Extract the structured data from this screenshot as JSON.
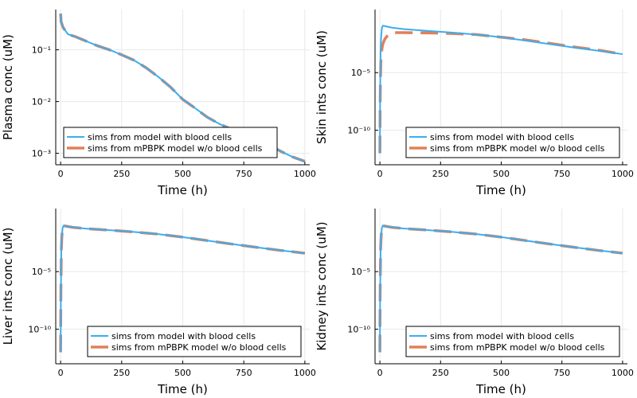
{
  "colors": {
    "series1": "#3aaef0",
    "series2": "#e0805a",
    "grid": "#e8e8e8",
    "axis": "#000000"
  },
  "chart_data": [
    {
      "type": "line",
      "xlabel": "Time (h)",
      "ylabel": "Plasma conc (uM)",
      "yscale": "log",
      "xlim": [
        -20,
        1020
      ],
      "ylim": [
        0.0006,
        0.6
      ],
      "xticks": [
        0,
        250,
        500,
        750,
        1000
      ],
      "xtick_labels": [
        "0",
        "250",
        "500",
        "750",
        "1000"
      ],
      "yticks": [
        0.001,
        0.01,
        0.1
      ],
      "ytick_labels": [
        "10⁻³",
        "10⁻²",
        "10⁻¹"
      ],
      "grid": true,
      "legend": {
        "position": "bottom-left",
        "entries": [
          "sims from model with blood cells",
          "sims from mPBPK model w/o blood cells"
        ]
      },
      "series": [
        {
          "name": "sims from model with blood cells",
          "style": "solid",
          "x": [
            0,
            2,
            10,
            30,
            60,
            100,
            150,
            200,
            250,
            300,
            350,
            400,
            450,
            500,
            550,
            600,
            650,
            700,
            750,
            800,
            850,
            900,
            950,
            1000
          ],
          "y": [
            0.5,
            0.35,
            0.27,
            0.2,
            0.18,
            0.15,
            0.12,
            0.1,
            0.08,
            0.063,
            0.045,
            0.03,
            0.019,
            0.011,
            0.0075,
            0.005,
            0.0037,
            0.0029,
            0.0024,
            0.0019,
            0.0015,
            0.0011,
            0.00085,
            0.0007
          ]
        },
        {
          "name": "sims from mPBPK model w/o blood cells",
          "style": "dashed",
          "x": [
            0,
            2,
            10,
            30,
            60,
            100,
            150,
            200,
            250,
            300,
            350,
            400,
            450,
            500,
            550,
            600,
            650,
            700,
            750,
            800,
            850,
            900,
            950,
            1000
          ],
          "y": [
            0.5,
            0.35,
            0.27,
            0.2,
            0.18,
            0.15,
            0.12,
            0.1,
            0.08,
            0.063,
            0.045,
            0.03,
            0.019,
            0.011,
            0.0075,
            0.005,
            0.0037,
            0.0029,
            0.0024,
            0.0019,
            0.0015,
            0.0011,
            0.00085,
            0.0007
          ]
        }
      ]
    },
    {
      "type": "line",
      "xlabel": "Time (h)",
      "ylabel": "Skin ints conc (uM)",
      "yscale": "log",
      "xlim": [
        -20,
        1020
      ],
      "ylim": [
        1e-13,
        3
      ],
      "xticks": [
        0,
        250,
        500,
        750,
        1000
      ],
      "xtick_labels": [
        "0",
        "250",
        "500",
        "750",
        "1000"
      ],
      "yticks": [
        1e-10,
        1e-05
      ],
      "ytick_labels": [
        "10⁻¹⁰",
        "10⁻⁵"
      ],
      "grid": true,
      "legend": {
        "position": "bottom-right",
        "entries": [
          "sims from model with blood cells",
          "sims from mPBPK model w/o blood cells"
        ]
      },
      "series": [
        {
          "name": "sims from model with blood cells",
          "style": "solid",
          "x": [
            0,
            0.5,
            1,
            2,
            3,
            5,
            8,
            12,
            20,
            50,
            100,
            200,
            300,
            400,
            500,
            600,
            700,
            800,
            900,
            1000
          ],
          "y": [
            1e-12,
            1e-09,
            1e-07,
            1e-05,
            0.001,
            0.01,
            0.07,
            0.12,
            0.11,
            0.08,
            0.06,
            0.042,
            0.03,
            0.02,
            0.012,
            0.006,
            0.003,
            0.0015,
            0.0008,
            0.0004
          ]
        },
        {
          "name": "sims from mPBPK model w/o blood cells",
          "style": "dashed",
          "x": [
            0,
            0.5,
            1,
            2,
            4,
            8,
            12,
            20,
            30,
            45,
            60,
            100,
            200,
            300,
            400,
            500,
            600,
            700,
            800,
            900,
            1000
          ],
          "y": [
            1e-12,
            1e-10,
            1e-08,
            1e-06,
            0.0001,
            0.001,
            0.003,
            0.008,
            0.015,
            0.025,
            0.03,
            0.03,
            0.028,
            0.025,
            0.02,
            0.012,
            0.007,
            0.0035,
            0.0017,
            0.0009,
            0.0004
          ]
        }
      ]
    },
    {
      "type": "line",
      "xlabel": "Time (h)",
      "ylabel": "Liver ints conc (uM)",
      "yscale": "log",
      "xlim": [
        -20,
        1020
      ],
      "ylim": [
        1e-13,
        3
      ],
      "xticks": [
        0,
        250,
        500,
        750,
        1000
      ],
      "xtick_labels": [
        "0",
        "250",
        "500",
        "750",
        "1000"
      ],
      "yticks": [
        1e-10,
        1e-05
      ],
      "ytick_labels": [
        "10⁻¹⁰",
        "10⁻⁵"
      ],
      "grid": true,
      "legend": {
        "position": "bottom-right",
        "entries": [
          "sims from model with blood cells",
          "sims from mPBPK model w/o blood cells"
        ]
      },
      "series": [
        {
          "name": "sims from model with blood cells",
          "style": "solid",
          "x": [
            0,
            0.5,
            1,
            2,
            3,
            5,
            8,
            12,
            20,
            50,
            100,
            200,
            300,
            400,
            500,
            600,
            700,
            800,
            900,
            1000
          ],
          "y": [
            1e-12,
            1e-09,
            1e-07,
            1e-05,
            0.001,
            0.01,
            0.06,
            0.1,
            0.09,
            0.07,
            0.055,
            0.04,
            0.028,
            0.018,
            0.01,
            0.005,
            0.0025,
            0.0013,
            0.0007,
            0.0004
          ]
        },
        {
          "name": "sims from mPBPK model w/o blood cells",
          "style": "dashed",
          "x": [
            0,
            0.5,
            1,
            2,
            3,
            5,
            8,
            12,
            20,
            50,
            100,
            200,
            300,
            400,
            500,
            600,
            700,
            800,
            900,
            1000
          ],
          "y": [
            1e-12,
            1e-09,
            1e-07,
            1e-05,
            0.001,
            0.01,
            0.06,
            0.1,
            0.09,
            0.07,
            0.055,
            0.04,
            0.028,
            0.018,
            0.01,
            0.005,
            0.0025,
            0.0013,
            0.0007,
            0.0004
          ]
        }
      ]
    },
    {
      "type": "line",
      "xlabel": "Time (h)",
      "ylabel": "Kidney ints conc (uM)",
      "yscale": "log",
      "xlim": [
        -20,
        1020
      ],
      "ylim": [
        1e-13,
        3
      ],
      "xticks": [
        0,
        250,
        500,
        750,
        1000
      ],
      "xtick_labels": [
        "0",
        "250",
        "500",
        "750",
        "1000"
      ],
      "yticks": [
        1e-10,
        1e-05
      ],
      "ytick_labels": [
        "10⁻¹⁰",
        "10⁻⁵"
      ],
      "grid": true,
      "legend": {
        "position": "bottom-right",
        "entries": [
          "sims from model with blood cells",
          "sims from mPBPK model w/o blood cells"
        ]
      },
      "series": [
        {
          "name": "sims from model with blood cells",
          "style": "solid",
          "x": [
            0,
            0.5,
            1,
            2,
            3,
            5,
            8,
            12,
            20,
            50,
            100,
            200,
            300,
            400,
            500,
            600,
            700,
            800,
            900,
            1000
          ],
          "y": [
            1e-12,
            1e-09,
            1e-07,
            1e-05,
            0.001,
            0.01,
            0.06,
            0.1,
            0.09,
            0.07,
            0.055,
            0.04,
            0.028,
            0.018,
            0.01,
            0.005,
            0.0025,
            0.0013,
            0.0007,
            0.0004
          ]
        },
        {
          "name": "sims from mPBPK model w/o blood cells",
          "style": "dashed",
          "x": [
            0,
            0.5,
            1,
            2,
            3,
            5,
            8,
            12,
            20,
            50,
            100,
            200,
            300,
            400,
            500,
            600,
            700,
            800,
            900,
            1000
          ],
          "y": [
            1e-12,
            1e-09,
            1e-07,
            1e-05,
            0.001,
            0.01,
            0.06,
            0.1,
            0.09,
            0.07,
            0.055,
            0.04,
            0.028,
            0.018,
            0.01,
            0.005,
            0.0025,
            0.0013,
            0.0007,
            0.0004
          ]
        }
      ]
    }
  ]
}
